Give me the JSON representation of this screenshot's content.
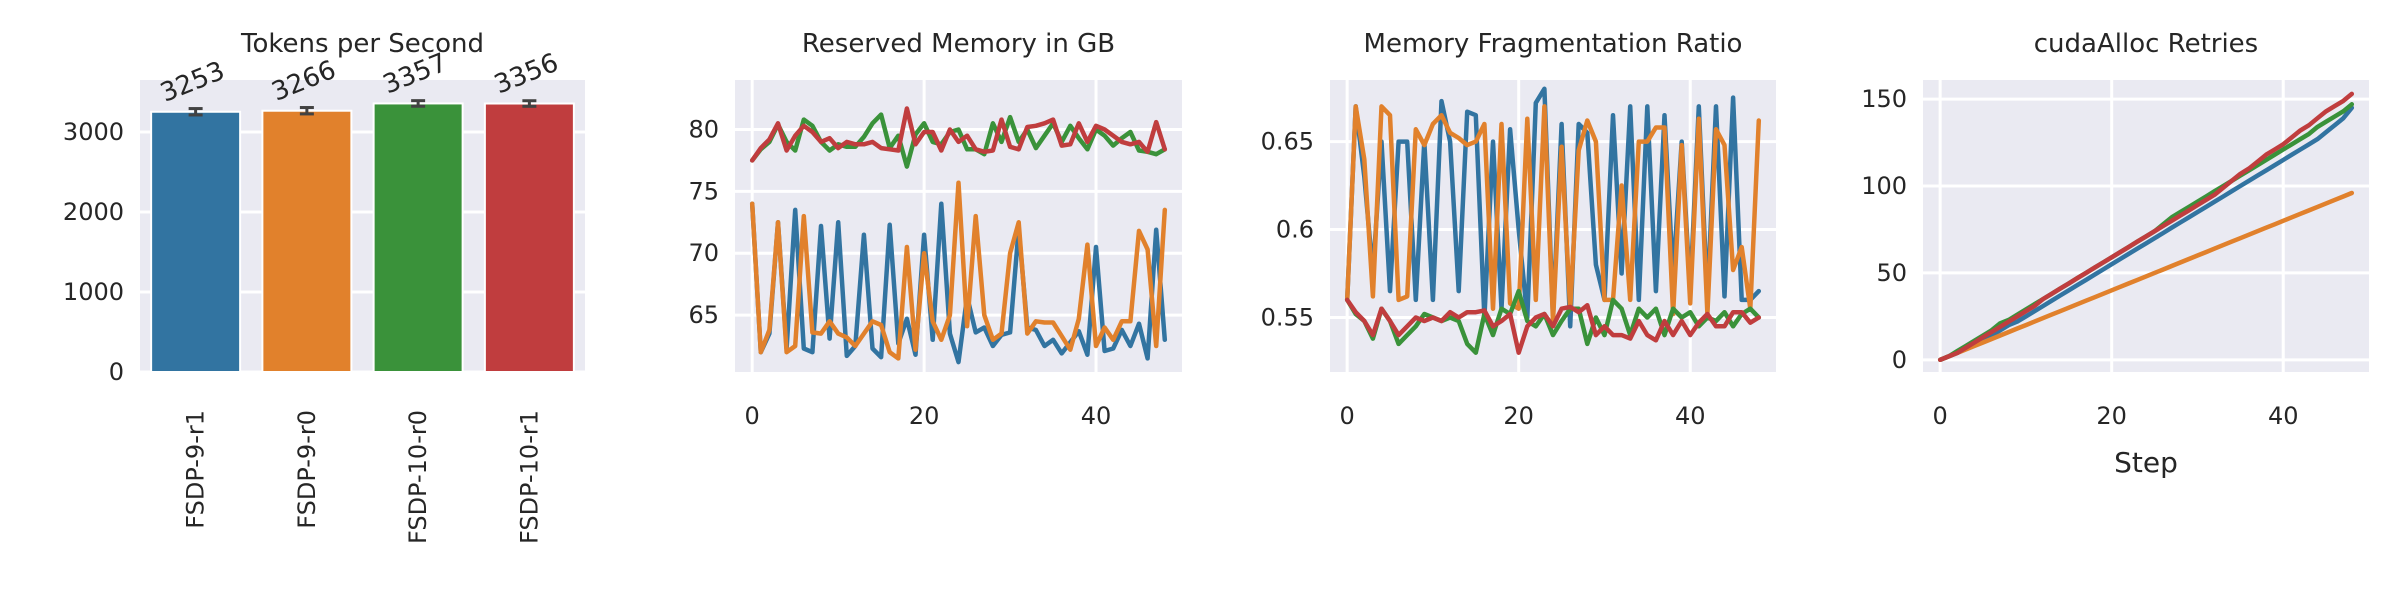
{
  "chart_data": [
    {
      "type": "bar",
      "title": "Tokens per Second",
      "categories": [
        "FSDP-9-r1",
        "FSDP-9-r0",
        "FSDP-10-r0",
        "FSDP-10-r1"
      ],
      "values": [
        3253,
        3266,
        3357,
        3356
      ],
      "data_labels": [
        "3253",
        "3266",
        "3357",
        "3356"
      ],
      "error": [
        40,
        40,
        35,
        35
      ],
      "colors": [
        "#3274a1",
        "#e1812c",
        "#3a923a",
        "#c03d3e"
      ],
      "ylim": [
        0,
        3650
      ],
      "yticks": [
        0,
        1000,
        2000,
        3000
      ],
      "grid": true
    },
    {
      "type": "line",
      "title": "Reserved Memory in GB",
      "xlim": [
        -2,
        50
      ],
      "ylim": [
        60.4,
        84
      ],
      "xticks": [
        0,
        20,
        40
      ],
      "yticks": [
        65,
        70,
        75,
        80
      ],
      "grid": true,
      "series": [
        {
          "color": "#3274a1",
          "values": [
            74.0,
            62.0,
            63.5,
            72.5,
            62.3,
            73.5,
            62.3,
            62.0,
            72.2,
            63.1,
            72.5,
            61.7,
            62.5,
            71.5,
            62.3,
            61.6,
            72.3,
            62.7,
            64.7,
            61.8,
            71.5,
            63.0,
            74.0,
            63.5,
            61.2,
            66.5,
            63.6,
            64.0,
            62.5,
            63.4,
            63.6,
            72.0,
            64.0,
            63.8,
            62.5,
            63.0,
            61.9,
            62.8,
            63.7,
            61.8,
            70.5,
            62.1,
            62.3,
            63.8,
            62.5,
            64.3,
            61.5,
            71.9,
            63.0
          ]
        },
        {
          "color": "#e1812c",
          "values": [
            74.0,
            62.0,
            63.8,
            72.5,
            62.0,
            62.5,
            73.0,
            63.6,
            63.5,
            64.5,
            63.5,
            63.2,
            62.5,
            63.5,
            64.5,
            64.2,
            62.0,
            61.5,
            70.5,
            62.2,
            70.0,
            64.5,
            63.0,
            65.0,
            75.7,
            64.1,
            73.0,
            65.0,
            63.0,
            63.5,
            70.0,
            72.5,
            63.5,
            64.5,
            64.4,
            64.4,
            63.3,
            62.2,
            64.7,
            70.7,
            62.5,
            64.0,
            63.0,
            64.5,
            64.5,
            71.8,
            70.3,
            62.5,
            73.5
          ]
        },
        {
          "color": "#3a923a",
          "values": [
            77.5,
            78.4,
            79.0,
            80.4,
            79.0,
            78.3,
            80.8,
            80.3,
            79.0,
            78.3,
            78.8,
            78.6,
            78.6,
            79.4,
            80.5,
            81.2,
            78.5,
            79.5,
            77.0,
            79.6,
            80.5,
            79.0,
            78.8,
            79.8,
            80.0,
            78.4,
            78.4,
            78.0,
            80.5,
            79.0,
            81.0,
            79.0,
            80.0,
            78.5,
            79.5,
            80.5,
            79.0,
            80.3,
            79.3,
            78.4,
            80.0,
            79.5,
            78.7,
            79.3,
            79.8,
            78.3,
            78.2,
            78.0,
            78.4
          ]
        },
        {
          "color": "#c03d3e",
          "values": [
            77.5,
            78.5,
            79.2,
            80.5,
            78.3,
            79.5,
            80.3,
            79.8,
            79.0,
            79.3,
            78.5,
            79.0,
            78.8,
            78.8,
            79.0,
            78.5,
            78.4,
            78.3,
            81.7,
            78.8,
            79.8,
            79.8,
            78.3,
            80.0,
            79.0,
            79.5,
            78.4,
            78.2,
            78.3,
            80.8,
            78.6,
            78.4,
            80.2,
            80.3,
            80.5,
            80.8,
            78.7,
            78.8,
            80.5,
            79.0,
            80.3,
            80.0,
            79.5,
            79.0,
            78.8,
            79.0,
            78.2,
            80.6,
            78.4
          ]
        }
      ]
    },
    {
      "type": "line",
      "title": "Memory Fragmentation Ratio",
      "xlim": [
        -2,
        50
      ],
      "ylim": [
        0.519,
        0.685
      ],
      "xticks": [
        0,
        20,
        40
      ],
      "yticks": [
        0.55,
        0.6,
        0.65
      ],
      "grid": true,
      "series": [
        {
          "color": "#3274a1",
          "values": [
            0.56,
            0.67,
            0.63,
            0.575,
            0.65,
            0.565,
            0.65,
            0.65,
            0.56,
            0.65,
            0.56,
            0.673,
            0.65,
            0.565,
            0.667,
            0.665,
            0.55,
            0.65,
            0.555,
            0.657,
            0.6,
            0.55,
            0.672,
            0.68,
            0.55,
            0.66,
            0.545,
            0.66,
            0.655,
            0.58,
            0.56,
            0.665,
            0.575,
            0.67,
            0.56,
            0.67,
            0.565,
            0.665,
            0.573,
            0.65,
            0.565,
            0.67,
            0.56,
            0.67,
            0.562,
            0.675,
            0.56,
            0.56,
            0.565
          ]
        },
        {
          "color": "#e1812c",
          "values": [
            0.56,
            0.67,
            0.64,
            0.562,
            0.67,
            0.665,
            0.56,
            0.562,
            0.657,
            0.648,
            0.66,
            0.665,
            0.655,
            0.652,
            0.648,
            0.65,
            0.66,
            0.555,
            0.66,
            0.558,
            0.555,
            0.663,
            0.56,
            0.67,
            0.548,
            0.647,
            0.555,
            0.645,
            0.662,
            0.65,
            0.56,
            0.56,
            0.625,
            0.56,
            0.65,
            0.65,
            0.658,
            0.658,
            0.552,
            0.648,
            0.558,
            0.663,
            0.552,
            0.657,
            0.648,
            0.577,
            0.59,
            0.555,
            0.662
          ]
        },
        {
          "color": "#3a923a",
          "values": [
            0.56,
            0.552,
            0.548,
            0.538,
            0.555,
            0.548,
            0.535,
            0.54,
            0.545,
            0.552,
            0.55,
            0.548,
            0.55,
            0.548,
            0.535,
            0.53,
            0.552,
            0.54,
            0.555,
            0.552,
            0.565,
            0.548,
            0.545,
            0.552,
            0.54,
            0.548,
            0.555,
            0.555,
            0.535,
            0.55,
            0.54,
            0.56,
            0.555,
            0.54,
            0.555,
            0.55,
            0.555,
            0.54,
            0.555,
            0.55,
            0.553,
            0.545,
            0.55,
            0.548,
            0.553,
            0.545,
            0.552,
            0.555,
            0.55
          ]
        },
        {
          "color": "#c03d3e",
          "values": [
            0.56,
            0.553,
            0.548,
            0.54,
            0.555,
            0.548,
            0.54,
            0.545,
            0.55,
            0.548,
            0.55,
            0.548,
            0.553,
            0.55,
            0.553,
            0.553,
            0.554,
            0.545,
            0.548,
            0.552,
            0.53,
            0.545,
            0.55,
            0.552,
            0.545,
            0.555,
            0.556,
            0.553,
            0.557,
            0.54,
            0.545,
            0.54,
            0.54,
            0.538,
            0.548,
            0.54,
            0.537,
            0.548,
            0.54,
            0.548,
            0.54,
            0.547,
            0.552,
            0.545,
            0.545,
            0.553,
            0.553,
            0.547,
            0.55
          ]
        }
      ]
    },
    {
      "type": "line",
      "title": "cudaAlloc Retries",
      "xlabel": "Step",
      "xlim": [
        -2,
        50
      ],
      "ylim": [
        -7,
        161
      ],
      "xticks": [
        0,
        20,
        40
      ],
      "yticks": [
        0,
        50,
        100,
        150
      ],
      "grid": true,
      "series": [
        {
          "color": "#3274a1",
          "values": [
            0,
            2,
            4,
            7,
            10,
            12,
            14,
            17,
            20,
            22,
            25,
            28,
            31,
            34,
            37,
            40,
            43,
            46,
            49,
            52,
            55,
            58,
            61,
            64,
            67,
            70,
            73,
            76,
            79,
            82,
            85,
            88,
            91,
            94,
            97,
            100,
            103,
            106,
            109,
            112,
            115,
            118,
            121,
            124,
            127,
            131,
            135,
            139,
            145
          ]
        },
        {
          "color": "#e1812c",
          "values": [
            0,
            2,
            4,
            6,
            8,
            10,
            12,
            14,
            16,
            18,
            20,
            22,
            24,
            26,
            28,
            30,
            32,
            34,
            36,
            38,
            40,
            42,
            44,
            46,
            48,
            50,
            52,
            54,
            56,
            58,
            60,
            62,
            64,
            66,
            68,
            70,
            72,
            74,
            76,
            78,
            80,
            82,
            84,
            86,
            88,
            90,
            92,
            94,
            96
          ]
        },
        {
          "color": "#3a923a",
          "values": [
            0,
            2,
            5,
            8,
            11,
            14,
            17,
            21,
            23,
            26,
            29,
            32,
            35,
            38,
            41,
            44,
            47,
            50,
            53,
            56,
            59,
            62,
            65,
            68,
            71,
            74,
            78,
            82,
            85,
            88,
            91,
            94,
            97,
            100,
            103,
            106,
            109,
            112,
            115,
            118,
            121,
            124,
            127,
            130,
            134,
            137,
            140,
            143,
            147
          ]
        },
        {
          "color": "#c03d3e",
          "values": [
            0,
            2,
            4,
            7,
            10,
            13,
            16,
            19,
            22,
            25,
            28,
            31,
            35,
            38,
            41,
            44,
            47,
            50,
            53,
            56,
            59,
            62,
            65,
            68,
            71,
            74,
            77,
            80,
            83,
            86,
            89,
            92,
            95,
            99,
            103,
            107,
            110,
            114,
            118,
            121,
            124,
            128,
            132,
            135,
            139,
            143,
            146,
            149,
            153
          ]
        }
      ]
    }
  ]
}
